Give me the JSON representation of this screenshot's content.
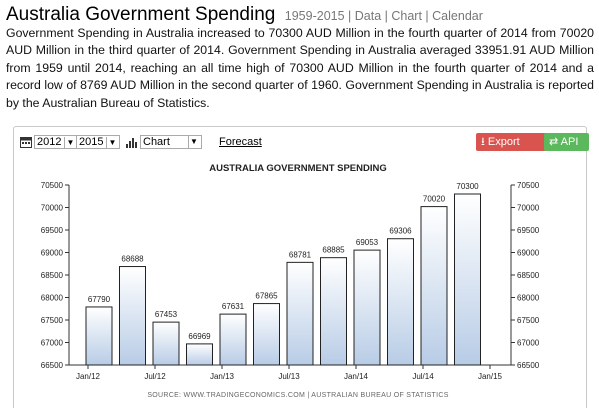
{
  "header": {
    "title": "Australia Government Spending",
    "years": "1959-2015",
    "links": [
      "Data",
      "Chart",
      "Calendar"
    ]
  },
  "description": "Government Spending in Australia increased to 70300 AUD Million in the fourth quarter of 2014 from 70020 AUD Million in the third quarter of 2014. Government Spending in Australia averaged 33951.91 AUD Million from 1959 until 2014, reaching an all time high of 70300 AUD Million in the fourth quarter of 2014 and a record low of 8769 AUD Million in the second quarter of 1960. Government Spending in Australia is reported by the Australian Bureau of Statistics.",
  "toolbar": {
    "start_year": "2012",
    "end_year": "2015",
    "chart_type": "Chart",
    "forecast_label": "Forecast",
    "export_label": "Export Data",
    "api_label": "API",
    "export_icon": "download-icon",
    "api_icon": "swap-arrows-icon",
    "calendar_icon": "calendar-icon",
    "chart_icon": "bar-chart-icon"
  },
  "colors": {
    "export_button": "#d9534f",
    "api_button": "#5cb85c",
    "bar_top": "#ffffff",
    "bar_bottom": "#b8cce6",
    "bar_border": "#222222"
  },
  "chart_data": {
    "type": "bar",
    "title": "AUSTRALIA GOVERNMENT SPENDING",
    "source": "SOURCE: WWW.TRADINGECONOMICS.COM  |  AUSTRALIAN BUREAU OF STATISTICS",
    "x": [
      "2012-Q1",
      "2012-Q2",
      "2012-Q3",
      "2012-Q4",
      "2013-Q1",
      "2013-Q2",
      "2013-Q3",
      "2013-Q4",
      "2014-Q1",
      "2014-Q2",
      "2014-Q3",
      "2014-Q4"
    ],
    "values": [
      67790,
      68688,
      67453,
      66969,
      67631,
      67865,
      68781,
      68885,
      69053,
      69306,
      70020,
      70300
    ],
    "x_tick_labels": [
      "Jan/12",
      "Jul/12",
      "Jan/13",
      "Jul/13",
      "Jan/14",
      "Jul/14",
      "Jan/15"
    ],
    "y_ticks": [
      66500,
      67000,
      67500,
      68000,
      68500,
      69000,
      69500,
      70000,
      70500
    ],
    "ylim": [
      66500,
      70500
    ],
    "y_axis_both_sides": true,
    "grid": false,
    "legend": "none"
  }
}
